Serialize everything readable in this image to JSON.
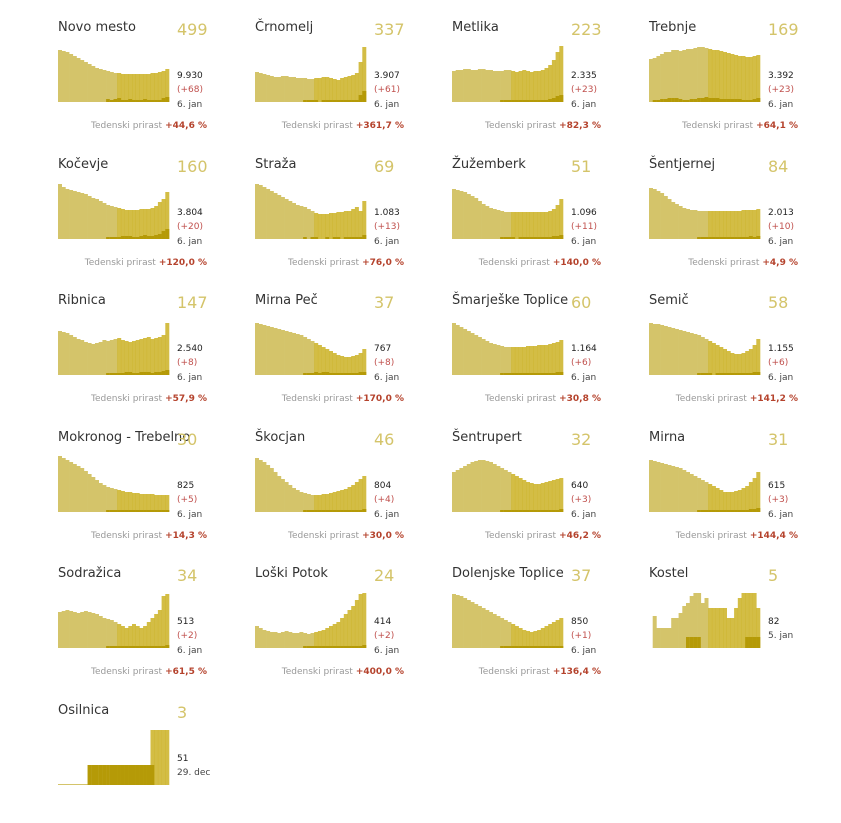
{
  "labels": {
    "growth_label": "Tedenski prirast"
  },
  "colors": {
    "bar": "#d4c46a",
    "bar_recent": "#c9ae1c",
    "new_cases": "#b59a07",
    "growth": "#b5432d",
    "diff": "#c0504d"
  },
  "chart_data": [
    {
      "type": "bar",
      "title": "Novo mesto",
      "active": "499",
      "total": "9.930",
      "diff": "(+68)",
      "date": "6. jan",
      "growth": "+44,6 %",
      "values": [
        52,
        51,
        50,
        48,
        46,
        44,
        42,
        40,
        38,
        36,
        34,
        33,
        32,
        31,
        30,
        29,
        29,
        28,
        28,
        28,
        28,
        28,
        28,
        28,
        28,
        29,
        29,
        30,
        31,
        33
      ],
      "new": [
        0,
        0,
        0,
        0,
        0,
        0,
        0,
        0,
        0,
        0,
        0,
        0,
        0,
        2,
        1,
        2,
        3,
        1,
        1,
        2,
        1,
        1,
        1,
        2,
        1,
        1,
        1,
        1,
        3,
        4
      ]
    },
    {
      "type": "bar",
      "title": "Črnomelj",
      "active": "337",
      "total": "3.907",
      "diff": "(+61)",
      "date": "6. jan",
      "growth": "+361,7 %",
      "values": [
        30,
        29,
        28,
        27,
        26,
        25,
        25,
        26,
        26,
        25,
        25,
        24,
        24,
        24,
        23,
        23,
        24,
        24,
        25,
        25,
        24,
        23,
        22,
        24,
        25,
        26,
        27,
        29,
        40,
        55
      ],
      "new": [
        0,
        0,
        0,
        0,
        0,
        0,
        0,
        0,
        0,
        0,
        0,
        0,
        0,
        1,
        1,
        1,
        1,
        0,
        1,
        1,
        1,
        1,
        1,
        1,
        1,
        1,
        1,
        1,
        6,
        10
      ]
    },
    {
      "type": "bar",
      "title": "Metlika",
      "active": "223",
      "total": "2.335",
      "diff": "(+23)",
      "date": "6. jan",
      "growth": "+82,3 %",
      "values": [
        31,
        32,
        32,
        33,
        33,
        32,
        32,
        33,
        33,
        32,
        32,
        31,
        31,
        31,
        32,
        32,
        31,
        30,
        31,
        32,
        31,
        30,
        31,
        31,
        32,
        34,
        37,
        42,
        50,
        56
      ],
      "new": [
        0,
        0,
        0,
        0,
        0,
        0,
        0,
        0,
        0,
        0,
        0,
        0,
        0,
        1,
        1,
        1,
        1,
        1,
        1,
        1,
        1,
        1,
        1,
        1,
        1,
        1,
        2,
        3,
        5,
        6
      ]
    },
    {
      "type": "bar",
      "title": "Trebnje",
      "active": "169",
      "total": "3.392",
      "diff": "(+23)",
      "date": "6. jan",
      "growth": "+64,1 %",
      "values": [
        43,
        44,
        46,
        48,
        50,
        50,
        52,
        52,
        51,
        52,
        53,
        53,
        54,
        55,
        55,
        54,
        53,
        52,
        52,
        51,
        50,
        49,
        48,
        47,
        46,
        46,
        45,
        45,
        46,
        47
      ],
      "new": [
        0,
        1,
        1,
        2,
        2,
        3,
        3,
        3,
        2,
        1,
        1,
        2,
        2,
        3,
        3,
        4,
        3,
        3,
        3,
        2,
        2,
        2,
        2,
        2,
        2,
        1,
        1,
        1,
        2,
        3
      ]
    },
    {
      "type": "bar",
      "title": "Kočevje",
      "active": "160",
      "total": "3.804",
      "diff": "(+20)",
      "date": "6. jan",
      "growth": "+120,0 %",
      "values": [
        55,
        52,
        50,
        49,
        48,
        47,
        46,
        45,
        43,
        41,
        40,
        38,
        36,
        34,
        33,
        32,
        31,
        30,
        29,
        29,
        29,
        29,
        30,
        30,
        30,
        31,
        33,
        37,
        40,
        47
      ],
      "new": [
        0,
        0,
        0,
        0,
        0,
        0,
        0,
        0,
        0,
        0,
        0,
        0,
        0,
        1,
        1,
        1,
        1,
        2,
        2,
        2,
        1,
        1,
        2,
        3,
        2,
        2,
        3,
        4,
        7,
        9
      ]
    },
    {
      "type": "bar",
      "title": "Straža",
      "active": "69",
      "total": "1.083",
      "diff": "(+13)",
      "date": "6. jan",
      "growth": "+76,0 %",
      "values": [
        55,
        54,
        52,
        50,
        48,
        46,
        44,
        42,
        40,
        38,
        36,
        34,
        33,
        32,
        30,
        28,
        26,
        25,
        25,
        25,
        26,
        26,
        27,
        27,
        28,
        28,
        30,
        32,
        28,
        38
      ],
      "new": [
        0,
        0,
        0,
        0,
        0,
        0,
        0,
        0,
        0,
        0,
        0,
        0,
        0,
        1,
        0,
        1,
        1,
        0,
        0,
        1,
        0,
        1,
        1,
        0,
        1,
        1,
        1,
        1,
        1,
        3
      ]
    },
    {
      "type": "bar",
      "title": "Žužemberk",
      "active": "51",
      "total": "1.096",
      "diff": "(+11)",
      "date": "6. jan",
      "growth": "+140,0 %",
      "values": [
        50,
        49,
        48,
        47,
        45,
        43,
        41,
        38,
        35,
        33,
        31,
        30,
        29,
        28,
        27,
        27,
        27,
        27,
        27,
        27,
        27,
        27,
        27,
        27,
        27,
        27,
        28,
        30,
        34,
        40
      ],
      "new": [
        0,
        0,
        0,
        0,
        0,
        0,
        0,
        0,
        0,
        0,
        0,
        0,
        0,
        1,
        1,
        1,
        1,
        0,
        1,
        1,
        1,
        1,
        1,
        1,
        1,
        1,
        1,
        2,
        2,
        3
      ]
    },
    {
      "type": "bar",
      "title": "Šentjernej",
      "active": "84",
      "total": "2.013",
      "diff": "(+10)",
      "date": "6. jan",
      "growth": "+4,9 %",
      "values": [
        51,
        50,
        48,
        46,
        43,
        40,
        37,
        35,
        33,
        31,
        30,
        29,
        29,
        28,
        28,
        28,
        28,
        28,
        28,
        28,
        28,
        28,
        28,
        28,
        28,
        29,
        29,
        29,
        29,
        30
      ],
      "new": [
        0,
        0,
        0,
        0,
        0,
        0,
        0,
        0,
        0,
        0,
        0,
        0,
        0,
        1,
        1,
        1,
        1,
        1,
        1,
        1,
        1,
        1,
        1,
        1,
        1,
        1,
        1,
        2,
        1,
        2
      ]
    },
    {
      "type": "bar",
      "title": "Ribnica",
      "active": "147",
      "total": "2.540",
      "diff": "(+8)",
      "date": "6. jan",
      "growth": "+57,9 %",
      "values": [
        44,
        43,
        42,
        40,
        38,
        36,
        35,
        33,
        32,
        31,
        32,
        33,
        35,
        34,
        35,
        36,
        37,
        35,
        34,
        33,
        34,
        35,
        36,
        37,
        38,
        36,
        37,
        38,
        40,
        52
      ],
      "new": [
        0,
        0,
        0,
        0,
        0,
        0,
        0,
        0,
        0,
        0,
        0,
        0,
        0,
        1,
        1,
        1,
        1,
        1,
        2,
        2,
        1,
        1,
        2,
        2,
        2,
        1,
        2,
        2,
        3,
        4
      ]
    },
    {
      "type": "bar",
      "title": "Mirna Peč",
      "active": "37",
      "total": "767",
      "diff": "(+8)",
      "date": "6. jan",
      "growth": "+170,0 %",
      "values": [
        52,
        51,
        50,
        49,
        48,
        47,
        46,
        45,
        44,
        43,
        42,
        41,
        40,
        38,
        36,
        34,
        32,
        30,
        28,
        26,
        24,
        22,
        20,
        19,
        18,
        18,
        19,
        20,
        22,
        26
      ],
      "new": [
        0,
        0,
        0,
        0,
        0,
        0,
        0,
        0,
        0,
        0,
        0,
        0,
        0,
        1,
        1,
        1,
        2,
        1,
        2,
        2,
        1,
        1,
        1,
        1,
        1,
        1,
        1,
        1,
        2,
        2
      ]
    },
    {
      "type": "bar",
      "title": "Šmarješke Toplice",
      "active": "60",
      "total": "1.164",
      "diff": "(+6)",
      "date": "6. jan",
      "growth": "+30,8 %",
      "values": [
        52,
        50,
        48,
        46,
        44,
        42,
        40,
        38,
        36,
        34,
        32,
        31,
        30,
        29,
        28,
        28,
        28,
        28,
        28,
        28,
        29,
        29,
        29,
        30,
        30,
        30,
        31,
        32,
        33,
        35
      ],
      "new": [
        0,
        0,
        0,
        0,
        0,
        0,
        0,
        0,
        0,
        0,
        0,
        0,
        0,
        1,
        1,
        1,
        1,
        1,
        1,
        1,
        1,
        1,
        1,
        1,
        1,
        1,
        1,
        1,
        2,
        2
      ]
    },
    {
      "type": "bar",
      "title": "Semič",
      "active": "58",
      "total": "1.155",
      "diff": "(+6)",
      "date": "6. jan",
      "growth": "+141,2 %",
      "values": [
        52,
        51,
        51,
        50,
        49,
        48,
        47,
        46,
        45,
        44,
        43,
        42,
        41,
        40,
        38,
        36,
        34,
        32,
        30,
        28,
        26,
        24,
        22,
        21,
        21,
        22,
        24,
        26,
        30,
        36
      ],
      "new": [
        0,
        0,
        0,
        0,
        0,
        0,
        0,
        0,
        0,
        0,
        0,
        0,
        0,
        1,
        1,
        1,
        1,
        0,
        1,
        1,
        1,
        1,
        1,
        1,
        1,
        1,
        1,
        1,
        2,
        2
      ]
    },
    {
      "type": "bar",
      "title": "Mokronog - Trebelno",
      "active": "30",
      "total": "825",
      "diff": "(+5)",
      "date": "6. jan",
      "growth": "+14,3 %",
      "values": [
        56,
        54,
        52,
        50,
        48,
        46,
        44,
        41,
        38,
        35,
        32,
        29,
        27,
        25,
        24,
        23,
        22,
        21,
        20,
        20,
        19,
        19,
        18,
        18,
        18,
        18,
        17,
        17,
        17,
        17
      ],
      "new": [
        0,
        0,
        0,
        0,
        0,
        0,
        0,
        0,
        0,
        0,
        0,
        0,
        0,
        1,
        1,
        1,
        1,
        1,
        1,
        1,
        1,
        1,
        1,
        1,
        1,
        1,
        1,
        1,
        1,
        1
      ]
    },
    {
      "type": "bar",
      "title": "Škocjan",
      "active": "46",
      "total": "804",
      "diff": "(+4)",
      "date": "6. jan",
      "growth": "+30,0 %",
      "values": [
        54,
        52,
        50,
        47,
        44,
        40,
        36,
        33,
        30,
        27,
        24,
        22,
        20,
        19,
        18,
        17,
        17,
        17,
        18,
        18,
        19,
        20,
        21,
        22,
        23,
        25,
        27,
        30,
        33,
        36
      ],
      "new": [
        0,
        0,
        0,
        0,
        0,
        0,
        0,
        0,
        0,
        0,
        0,
        0,
        0,
        1,
        1,
        1,
        1,
        1,
        1,
        1,
        1,
        1,
        1,
        1,
        1,
        1,
        1,
        1,
        1,
        2
      ]
    },
    {
      "type": "bar",
      "title": "Šentrupert",
      "active": "32",
      "total": "640",
      "diff": "(+3)",
      "date": "6. jan",
      "growth": "+46,2 %",
      "values": [
        40,
        42,
        44,
        46,
        48,
        50,
        51,
        52,
        52,
        51,
        50,
        48,
        46,
        44,
        42,
        40,
        38,
        36,
        34,
        32,
        30,
        29,
        28,
        28,
        29,
        30,
        31,
        32,
        33,
        34
      ],
      "new": [
        0,
        0,
        0,
        0,
        0,
        0,
        0,
        0,
        0,
        0,
        0,
        0,
        0,
        1,
        1,
        1,
        1,
        1,
        1,
        1,
        1,
        1,
        1,
        1,
        1,
        1,
        1,
        1,
        1,
        2
      ]
    },
    {
      "type": "bar",
      "title": "Mirna",
      "active": "31",
      "total": "615",
      "diff": "(+3)",
      "date": "6. jan",
      "growth": "+144,4 %",
      "values": [
        52,
        51,
        50,
        49,
        48,
        47,
        46,
        45,
        44,
        42,
        40,
        38,
        36,
        34,
        32,
        30,
        28,
        26,
        24,
        22,
        20,
        20,
        20,
        21,
        22,
        24,
        26,
        30,
        34,
        40
      ],
      "new": [
        0,
        0,
        0,
        0,
        0,
        0,
        0,
        0,
        0,
        0,
        0,
        0,
        0,
        1,
        1,
        1,
        1,
        1,
        1,
        1,
        1,
        1,
        1,
        1,
        1,
        1,
        1,
        2,
        2,
        3
      ]
    },
    {
      "type": "bar",
      "title": "Sodražica",
      "active": "34",
      "total": "513",
      "diff": "(+2)",
      "date": "6. jan",
      "growth": "+61,5 %",
      "values": [
        36,
        37,
        38,
        37,
        36,
        35,
        36,
        37,
        36,
        35,
        34,
        32,
        30,
        29,
        28,
        26,
        24,
        22,
        20,
        22,
        24,
        22,
        20,
        22,
        26,
        30,
        34,
        38,
        52,
        54
      ],
      "new": [
        0,
        0,
        0,
        0,
        0,
        0,
        0,
        0,
        0,
        0,
        0,
        0,
        0,
        1,
        1,
        1,
        1,
        1,
        1,
        1,
        1,
        1,
        1,
        1,
        1,
        1,
        1,
        1,
        1,
        2
      ]
    },
    {
      "type": "bar",
      "title": "Loški Potok",
      "active": "24",
      "total": "414",
      "diff": "(+2)",
      "date": "6. jan",
      "growth": "+400,0 %",
      "values": [
        22,
        20,
        18,
        17,
        16,
        16,
        15,
        16,
        17,
        16,
        15,
        15,
        16,
        15,
        14,
        15,
        16,
        17,
        18,
        20,
        22,
        24,
        26,
        30,
        34,
        38,
        42,
        48,
        54,
        55
      ],
      "new": [
        0,
        0,
        0,
        0,
        0,
        0,
        0,
        0,
        0,
        0,
        0,
        0,
        0,
        1,
        1,
        1,
        1,
        1,
        1,
        1,
        1,
        1,
        1,
        1,
        1,
        1,
        1,
        1,
        1,
        2
      ]
    },
    {
      "type": "bar",
      "title": "Dolenjske Toplice",
      "active": "37",
      "total": "850",
      "diff": "(+1)",
      "date": "6. jan",
      "growth": "+136,4 %",
      "values": [
        54,
        53,
        52,
        50,
        48,
        46,
        44,
        42,
        40,
        38,
        36,
        34,
        32,
        30,
        28,
        26,
        24,
        22,
        20,
        18,
        17,
        16,
        17,
        18,
        20,
        22,
        24,
        26,
        28,
        30
      ],
      "new": [
        0,
        0,
        0,
        0,
        0,
        0,
        0,
        0,
        0,
        0,
        0,
        0,
        0,
        1,
        1,
        1,
        1,
        1,
        1,
        1,
        1,
        1,
        1,
        1,
        1,
        1,
        1,
        1,
        1,
        1
      ]
    },
    {
      "type": "bar",
      "title": "Kostel",
      "active": "5",
      "total": "82",
      "diff": "",
      "date": "5. jan",
      "growth": "",
      "values": [
        0,
        32,
        20,
        20,
        20,
        20,
        30,
        30,
        35,
        42,
        45,
        52,
        55,
        55,
        45,
        50,
        40,
        40,
        40,
        40,
        40,
        30,
        30,
        40,
        50,
        55,
        55,
        55,
        55,
        40
      ],
      "new": [
        0,
        0,
        0,
        0,
        0,
        0,
        0,
        0,
        0,
        0,
        10,
        10,
        10,
        10,
        0,
        0,
        0,
        0,
        0,
        0,
        0,
        0,
        0,
        0,
        0,
        0,
        10,
        10,
        10,
        10
      ]
    },
    {
      "type": "bar",
      "title": "Osilnica",
      "active": "3",
      "total": "51",
      "diff": "",
      "date": "29. dec",
      "growth": "",
      "values": [
        1,
        1,
        1,
        1,
        1,
        1,
        1,
        1,
        20,
        20,
        20,
        20,
        20,
        20,
        20,
        20,
        20,
        20,
        20,
        20,
        20,
        20,
        20,
        20,
        20,
        55,
        55,
        55,
        55,
        55
      ],
      "new": [
        0,
        0,
        0,
        0,
        0,
        0,
        0,
        0,
        20,
        20,
        20,
        20,
        20,
        20,
        20,
        20,
        20,
        20,
        20,
        20,
        20,
        20,
        20,
        20,
        20,
        20,
        0,
        0,
        0,
        0
      ]
    }
  ]
}
